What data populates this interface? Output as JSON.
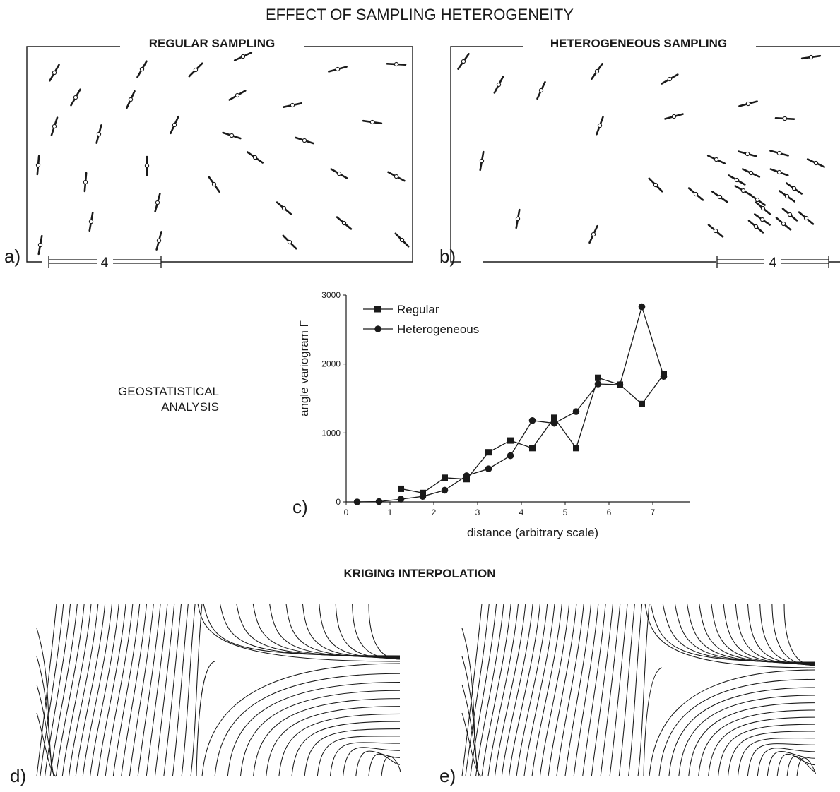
{
  "figure": {
    "title": "EFFECT OF SAMPLING HETEROGENEITY",
    "panel_a": {
      "label": "a)",
      "title": "REGULAR SAMPLING",
      "scale_label": "4"
    },
    "panel_b": {
      "label": "b)",
      "title": "HETEROGENEOUS SAMPLING",
      "scale_label": "4"
    },
    "geostat_label": {
      "line1": "GEOSTATISTICAL",
      "line2": "ANALYSIS"
    },
    "panel_c": {
      "label": "c)"
    },
    "kriging_title": "KRIGING INTERPOLATION",
    "panel_d": {
      "label": "d)"
    },
    "panel_e": {
      "label": "e)"
    },
    "line_color": "#1a1a1a"
  },
  "chart_data": {
    "type": "line",
    "title": "",
    "xlabel": "distance (arbitrary scale)",
    "ylabel": "angle variogram Γ",
    "xlim": [
      0,
      7.5
    ],
    "ylim": [
      0,
      3000
    ],
    "x_ticks": [
      "0",
      "1",
      "2",
      "3",
      "4",
      "5",
      "6",
      "7"
    ],
    "y_ticks": [
      "0",
      "1000",
      "2000",
      "3000"
    ],
    "legend_position": "top-left",
    "series": [
      {
        "name": "Regular",
        "marker": "square",
        "x": [
          1.25,
          1.75,
          2.25,
          2.75,
          3.25,
          3.75,
          4.25,
          4.75,
          5.25,
          5.75,
          6.25,
          6.75,
          7.25
        ],
        "y": [
          190,
          130,
          350,
          330,
          720,
          890,
          780,
          1220,
          780,
          1800,
          1700,
          1420,
          1850
        ]
      },
      {
        "name": "Heterogeneous",
        "marker": "circle",
        "x": [
          0.25,
          0.75,
          1.25,
          1.75,
          2.25,
          2.75,
          3.25,
          3.75,
          4.25,
          4.75,
          5.25,
          5.75,
          6.25,
          6.75,
          7.25
        ],
        "y": [
          0,
          5,
          40,
          80,
          170,
          380,
          480,
          670,
          1180,
          1140,
          1310,
          1710,
          1700,
          2830,
          1820
        ]
      }
    ]
  }
}
